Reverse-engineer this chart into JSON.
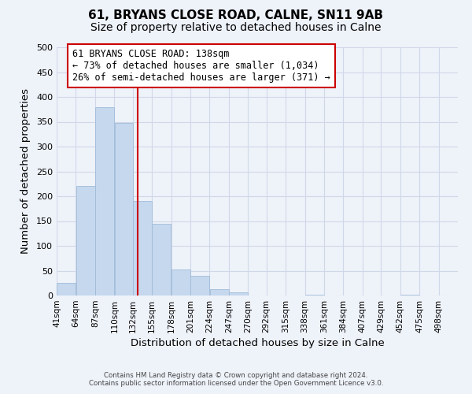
{
  "title_line1": "61, BRYANS CLOSE ROAD, CALNE, SN11 9AB",
  "title_line2": "Size of property relative to detached houses in Calne",
  "xlabel": "Distribution of detached houses by size in Calne",
  "ylabel": "Number of detached properties",
  "bar_left_edges": [
    41,
    64,
    87,
    110,
    132,
    155,
    178,
    201,
    224,
    247,
    270,
    292,
    315,
    338,
    361,
    384,
    407,
    429,
    452,
    475
  ],
  "bar_heights": [
    25,
    220,
    380,
    348,
    190,
    145,
    53,
    40,
    13,
    6,
    0,
    0,
    0,
    2,
    0,
    0,
    0,
    0,
    2,
    0
  ],
  "bin_width": 23,
  "bar_color": "#c5d8ee",
  "bar_edge_color": "#a0bbd8",
  "vline_x": 138,
  "vline_color": "#cc0000",
  "annotation_text_line1": "61 BRYANS CLOSE ROAD: 138sqm",
  "annotation_text_line2": "← 73% of detached houses are smaller (1,034)",
  "annotation_text_line3": "26% of semi-detached houses are larger (371) →",
  "annotation_box_color": "white",
  "annotation_box_edge_color": "#cc0000",
  "annotation_fontsize": 8.5,
  "xlim_left": 41,
  "xlim_right": 521,
  "ylim_top": 500,
  "ylim_bottom": 0,
  "yticks": [
    0,
    50,
    100,
    150,
    200,
    250,
    300,
    350,
    400,
    450,
    500
  ],
  "xtick_labels": [
    "41sqm",
    "64sqm",
    "87sqm",
    "110sqm",
    "132sqm",
    "155sqm",
    "178sqm",
    "201sqm",
    "224sqm",
    "247sqm",
    "270sqm",
    "292sqm",
    "315sqm",
    "338sqm",
    "361sqm",
    "384sqm",
    "407sqm",
    "429sqm",
    "452sqm",
    "475sqm",
    "498sqm"
  ],
  "xtick_positions": [
    41,
    64,
    87,
    110,
    132,
    155,
    178,
    201,
    224,
    247,
    270,
    292,
    315,
    338,
    361,
    384,
    407,
    429,
    452,
    475,
    498
  ],
  "footer_line1": "Contains HM Land Registry data © Crown copyright and database right 2024.",
  "footer_line2": "Contains public sector information licensed under the Open Government Licence v3.0.",
  "background_color": "#eef2f9",
  "grid_color": "#d0d8e8",
  "title_fontsize": 11,
  "subtitle_fontsize": 10,
  "axis_label_fontsize": 9.5,
  "tick_fontsize": 7.5,
  "ytick_fontsize": 8
}
